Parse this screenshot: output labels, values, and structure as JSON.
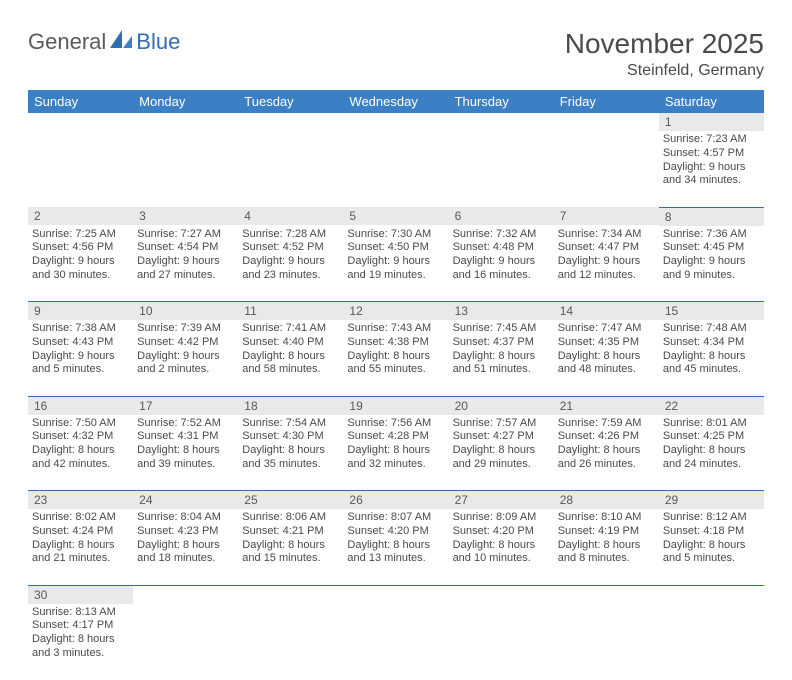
{
  "logo": {
    "text1": "General",
    "text2": "Blue"
  },
  "title": {
    "month": "November 2025",
    "location": "Steinfeld, Germany"
  },
  "colors": {
    "header_bg": "#3b7fc4",
    "header_text": "#ffffff",
    "daynum_bg": "#e9e9e9",
    "daynum_text": "#595959",
    "body_text": "#4a4a4a",
    "row_border": "#2f6fb0",
    "logo_gray": "#5a5a5a",
    "logo_blue": "#2f6fb0",
    "page_bg": "#ffffff"
  },
  "typography": {
    "title_fontsize": 28,
    "location_fontsize": 16,
    "dayheader_fontsize": 13,
    "daynum_fontsize": 12,
    "cell_fontsize": 11
  },
  "day_headers": [
    "Sunday",
    "Monday",
    "Tuesday",
    "Wednesday",
    "Thursday",
    "Friday",
    "Saturday"
  ],
  "weeks": [
    [
      null,
      null,
      null,
      null,
      null,
      null,
      {
        "n": "1",
        "sr": "Sunrise: 7:23 AM",
        "ss": "Sunset: 4:57 PM",
        "dl": "Daylight: 9 hours and 34 minutes."
      }
    ],
    [
      {
        "n": "2",
        "sr": "Sunrise: 7:25 AM",
        "ss": "Sunset: 4:56 PM",
        "dl": "Daylight: 9 hours and 30 minutes."
      },
      {
        "n": "3",
        "sr": "Sunrise: 7:27 AM",
        "ss": "Sunset: 4:54 PM",
        "dl": "Daylight: 9 hours and 27 minutes."
      },
      {
        "n": "4",
        "sr": "Sunrise: 7:28 AM",
        "ss": "Sunset: 4:52 PM",
        "dl": "Daylight: 9 hours and 23 minutes."
      },
      {
        "n": "5",
        "sr": "Sunrise: 7:30 AM",
        "ss": "Sunset: 4:50 PM",
        "dl": "Daylight: 9 hours and 19 minutes."
      },
      {
        "n": "6",
        "sr": "Sunrise: 7:32 AM",
        "ss": "Sunset: 4:48 PM",
        "dl": "Daylight: 9 hours and 16 minutes."
      },
      {
        "n": "7",
        "sr": "Sunrise: 7:34 AM",
        "ss": "Sunset: 4:47 PM",
        "dl": "Daylight: 9 hours and 12 minutes."
      },
      {
        "n": "8",
        "sr": "Sunrise: 7:36 AM",
        "ss": "Sunset: 4:45 PM",
        "dl": "Daylight: 9 hours and 9 minutes."
      }
    ],
    [
      {
        "n": "9",
        "sr": "Sunrise: 7:38 AM",
        "ss": "Sunset: 4:43 PM",
        "dl": "Daylight: 9 hours and 5 minutes."
      },
      {
        "n": "10",
        "sr": "Sunrise: 7:39 AM",
        "ss": "Sunset: 4:42 PM",
        "dl": "Daylight: 9 hours and 2 minutes."
      },
      {
        "n": "11",
        "sr": "Sunrise: 7:41 AM",
        "ss": "Sunset: 4:40 PM",
        "dl": "Daylight: 8 hours and 58 minutes."
      },
      {
        "n": "12",
        "sr": "Sunrise: 7:43 AM",
        "ss": "Sunset: 4:38 PM",
        "dl": "Daylight: 8 hours and 55 minutes."
      },
      {
        "n": "13",
        "sr": "Sunrise: 7:45 AM",
        "ss": "Sunset: 4:37 PM",
        "dl": "Daylight: 8 hours and 51 minutes."
      },
      {
        "n": "14",
        "sr": "Sunrise: 7:47 AM",
        "ss": "Sunset: 4:35 PM",
        "dl": "Daylight: 8 hours and 48 minutes."
      },
      {
        "n": "15",
        "sr": "Sunrise: 7:48 AM",
        "ss": "Sunset: 4:34 PM",
        "dl": "Daylight: 8 hours and 45 minutes."
      }
    ],
    [
      {
        "n": "16",
        "sr": "Sunrise: 7:50 AM",
        "ss": "Sunset: 4:32 PM",
        "dl": "Daylight: 8 hours and 42 minutes."
      },
      {
        "n": "17",
        "sr": "Sunrise: 7:52 AM",
        "ss": "Sunset: 4:31 PM",
        "dl": "Daylight: 8 hours and 39 minutes."
      },
      {
        "n": "18",
        "sr": "Sunrise: 7:54 AM",
        "ss": "Sunset: 4:30 PM",
        "dl": "Daylight: 8 hours and 35 minutes."
      },
      {
        "n": "19",
        "sr": "Sunrise: 7:56 AM",
        "ss": "Sunset: 4:28 PM",
        "dl": "Daylight: 8 hours and 32 minutes."
      },
      {
        "n": "20",
        "sr": "Sunrise: 7:57 AM",
        "ss": "Sunset: 4:27 PM",
        "dl": "Daylight: 8 hours and 29 minutes."
      },
      {
        "n": "21",
        "sr": "Sunrise: 7:59 AM",
        "ss": "Sunset: 4:26 PM",
        "dl": "Daylight: 8 hours and 26 minutes."
      },
      {
        "n": "22",
        "sr": "Sunrise: 8:01 AM",
        "ss": "Sunset: 4:25 PM",
        "dl": "Daylight: 8 hours and 24 minutes."
      }
    ],
    [
      {
        "n": "23",
        "sr": "Sunrise: 8:02 AM",
        "ss": "Sunset: 4:24 PM",
        "dl": "Daylight: 8 hours and 21 minutes."
      },
      {
        "n": "24",
        "sr": "Sunrise: 8:04 AM",
        "ss": "Sunset: 4:23 PM",
        "dl": "Daylight: 8 hours and 18 minutes."
      },
      {
        "n": "25",
        "sr": "Sunrise: 8:06 AM",
        "ss": "Sunset: 4:21 PM",
        "dl": "Daylight: 8 hours and 15 minutes."
      },
      {
        "n": "26",
        "sr": "Sunrise: 8:07 AM",
        "ss": "Sunset: 4:20 PM",
        "dl": "Daylight: 8 hours and 13 minutes."
      },
      {
        "n": "27",
        "sr": "Sunrise: 8:09 AM",
        "ss": "Sunset: 4:20 PM",
        "dl": "Daylight: 8 hours and 10 minutes."
      },
      {
        "n": "28",
        "sr": "Sunrise: 8:10 AM",
        "ss": "Sunset: 4:19 PM",
        "dl": "Daylight: 8 hours and 8 minutes."
      },
      {
        "n": "29",
        "sr": "Sunrise: 8:12 AM",
        "ss": "Sunset: 4:18 PM",
        "dl": "Daylight: 8 hours and 5 minutes."
      }
    ],
    [
      {
        "n": "30",
        "sr": "Sunrise: 8:13 AM",
        "ss": "Sunset: 4:17 PM",
        "dl": "Daylight: 8 hours and 3 minutes."
      },
      null,
      null,
      null,
      null,
      null,
      null
    ]
  ]
}
